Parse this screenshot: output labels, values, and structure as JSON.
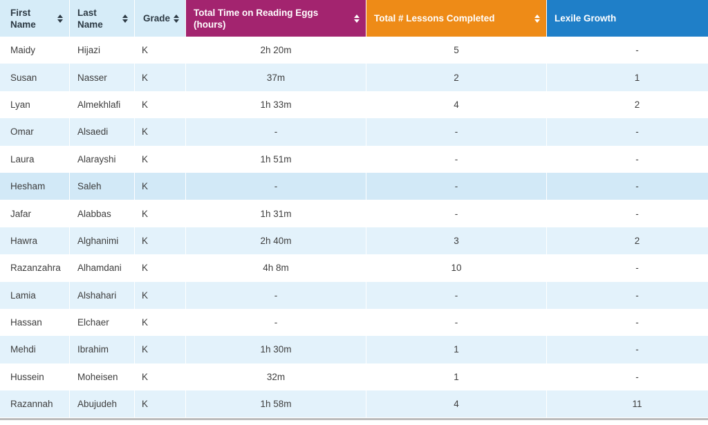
{
  "columns": {
    "first_name": "First Name",
    "last_name": "Last Name",
    "grade": "Grade",
    "total_time": "Total Time on Reading Eggs (hours)",
    "lessons": "Total # Lessons Completed",
    "lexile": "Lexile Growth"
  },
  "colors": {
    "time_header": "#a3246f",
    "lessons_header": "#ee8b17",
    "lexile_header": "#1f7fc8",
    "name_header": "#d6ecf8",
    "band_row": "#e3f2fb"
  },
  "rows": [
    {
      "first": "Maidy",
      "last": "Hijazi",
      "grade": "K",
      "time": "2h 20m",
      "lessons": "5",
      "lexile": "-"
    },
    {
      "first": "Susan",
      "last": "Nasser",
      "grade": "K",
      "time": "37m",
      "lessons": "2",
      "lexile": "1"
    },
    {
      "first": "Lyan",
      "last": "Almekhlafi",
      "grade": "K",
      "time": "1h 33m",
      "lessons": "4",
      "lexile": "2"
    },
    {
      "first": "Omar",
      "last": "Alsaedi",
      "grade": "K",
      "time": "-",
      "lessons": "-",
      "lexile": "-"
    },
    {
      "first": "Laura",
      "last": "Alarayshi",
      "grade": "K",
      "time": "1h 51m",
      "lessons": "-",
      "lexile": "-"
    },
    {
      "first": "Hesham",
      "last": "Saleh",
      "grade": "K",
      "time": "-",
      "lessons": "-",
      "lexile": "-"
    },
    {
      "first": "Jafar",
      "last": "Alabbas",
      "grade": "K",
      "time": "1h 31m",
      "lessons": "-",
      "lexile": "-"
    },
    {
      "first": "Hawra",
      "last": "Alghanimi",
      "grade": "K",
      "time": "2h 40m",
      "lessons": "3",
      "lexile": "2"
    },
    {
      "first": "Razanzahra",
      "last": "Alhamdani",
      "grade": "K",
      "time": "4h 8m",
      "lessons": "10",
      "lexile": "-"
    },
    {
      "first": "Lamia",
      "last": "Alshahari",
      "grade": "K",
      "time": "-",
      "lessons": "-",
      "lexile": "-"
    },
    {
      "first": "Hassan",
      "last": "Elchaer",
      "grade": "K",
      "time": "-",
      "lessons": "-",
      "lexile": "-"
    },
    {
      "first": "Mehdi",
      "last": "Ibrahim",
      "grade": "K",
      "time": "1h 30m",
      "lessons": "1",
      "lexile": "-"
    },
    {
      "first": "Hussein",
      "last": "Moheisen",
      "grade": "K",
      "time": "32m",
      "lessons": "1",
      "lexile": "-"
    },
    {
      "first": "Razannah",
      "last": "Abujudeh",
      "grade": "K",
      "time": "1h 58m",
      "lessons": "4",
      "lexile": "11"
    }
  ]
}
